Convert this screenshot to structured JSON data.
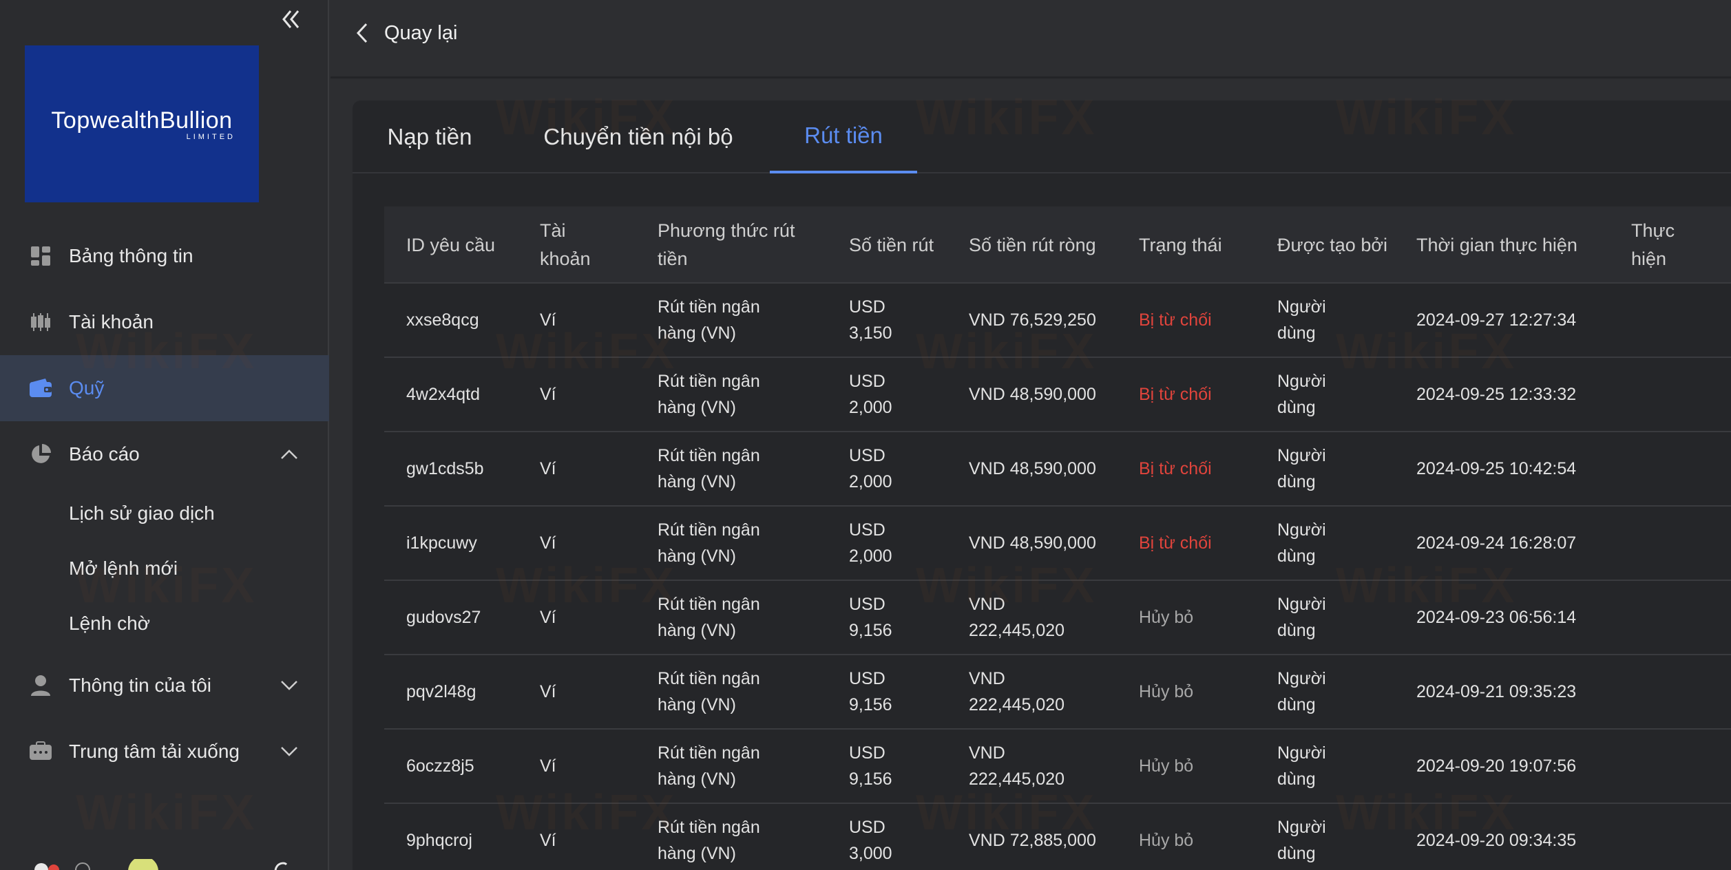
{
  "sidebar": {
    "logo": {
      "name": "TopwealthBullion",
      "sub": "LIMITED"
    },
    "items": [
      {
        "label": "Bảng thông tin",
        "icon": "dashboard-icon"
      },
      {
        "label": "Tài khoản",
        "icon": "candlestick-icon"
      },
      {
        "label": "Quỹ",
        "icon": "wallet-icon",
        "active": true
      },
      {
        "label": "Báo cáo",
        "icon": "pie-chart-icon",
        "expanded": true
      },
      {
        "label": "Thông tin của tôi",
        "icon": "user-icon"
      },
      {
        "label": "Trung tâm tải xuống",
        "icon": "download-center-icon"
      }
    ],
    "report_sub": [
      "Lịch sử giao dịch",
      "Mở lệnh mới",
      "Lệnh chờ"
    ]
  },
  "topbar": {
    "back_label": "Quay lại"
  },
  "tabs": [
    "Nạp tiền",
    "Chuyển tiền nội bộ",
    "Rút tiền"
  ],
  "active_tab": 2,
  "table": {
    "headers": [
      "ID yêu cầu",
      "Tài khoản",
      "Phương thức rút tiền",
      "Số tiền rút",
      "Số tiền rút ròng",
      "Trạng thái",
      "Được tạo bởi",
      "Thời gian thực hiện",
      "Thực hiện"
    ],
    "rows": [
      {
        "id": "xxse8qcg",
        "account": "Ví",
        "method": "Rút tiền ngân hàng (VN)",
        "amount": "USD 3,150",
        "net": "VND 76,529,250",
        "status": "Bị từ chối",
        "created_by": "Người dùng",
        "time": "2024-09-27 12:27:34"
      },
      {
        "id": "4w2x4qtd",
        "account": "Ví",
        "method": "Rút tiền ngân hàng (VN)",
        "amount": "USD 2,000",
        "net": "VND 48,590,000",
        "status": "Bị từ chối",
        "created_by": "Người dùng",
        "time": "2024-09-25 12:33:32"
      },
      {
        "id": "gw1cds5b",
        "account": "Ví",
        "method": "Rút tiền ngân hàng (VN)",
        "amount": "USD 2,000",
        "net": "VND 48,590,000",
        "status": "Bị từ chối",
        "created_by": "Người dùng",
        "time": "2024-09-25 10:42:54"
      },
      {
        "id": "i1kpcuwy",
        "account": "Ví",
        "method": "Rút tiền ngân hàng (VN)",
        "amount": "USD 2,000",
        "net": "VND 48,590,000",
        "status": "Bị từ chối",
        "created_by": "Người dùng",
        "time": "2024-09-24 16:28:07"
      },
      {
        "id": "gudovs27",
        "account": "Ví",
        "method": "Rút tiền ngân hàng (VN)",
        "amount": "USD 9,156",
        "net": "VND 222,445,020",
        "status": "Hủy bỏ",
        "created_by": "Người dùng",
        "time": "2024-09-23 06:56:14"
      },
      {
        "id": "pqv2l48g",
        "account": "Ví",
        "method": "Rút tiền ngân hàng (VN)",
        "amount": "USD 9,156",
        "net": "VND 222,445,020",
        "status": "Hủy bỏ",
        "created_by": "Người dùng",
        "time": "2024-09-21 09:35:23"
      },
      {
        "id": "6oczz8j5",
        "account": "Ví",
        "method": "Rút tiền ngân hàng (VN)",
        "amount": "USD 9,156",
        "net": "VND 222,445,020",
        "status": "Hủy bỏ",
        "created_by": "Người dùng",
        "time": "2024-09-20 19:07:56"
      },
      {
        "id": "9phqcroj",
        "account": "Ví",
        "method": "Rút tiền ngân hàng (VN)",
        "amount": "USD 3,000",
        "net": "VND 72,885,000",
        "status": "Hủy bỏ",
        "created_by": "Người dùng",
        "time": "2024-09-20 09:34:35"
      }
    ]
  },
  "colors": {
    "accent": "#5b8cf0",
    "rejected": "#e0443c",
    "cancelled": "#a8a8a8",
    "logo_bg": "#12318c"
  },
  "watermark": "WikiFX"
}
